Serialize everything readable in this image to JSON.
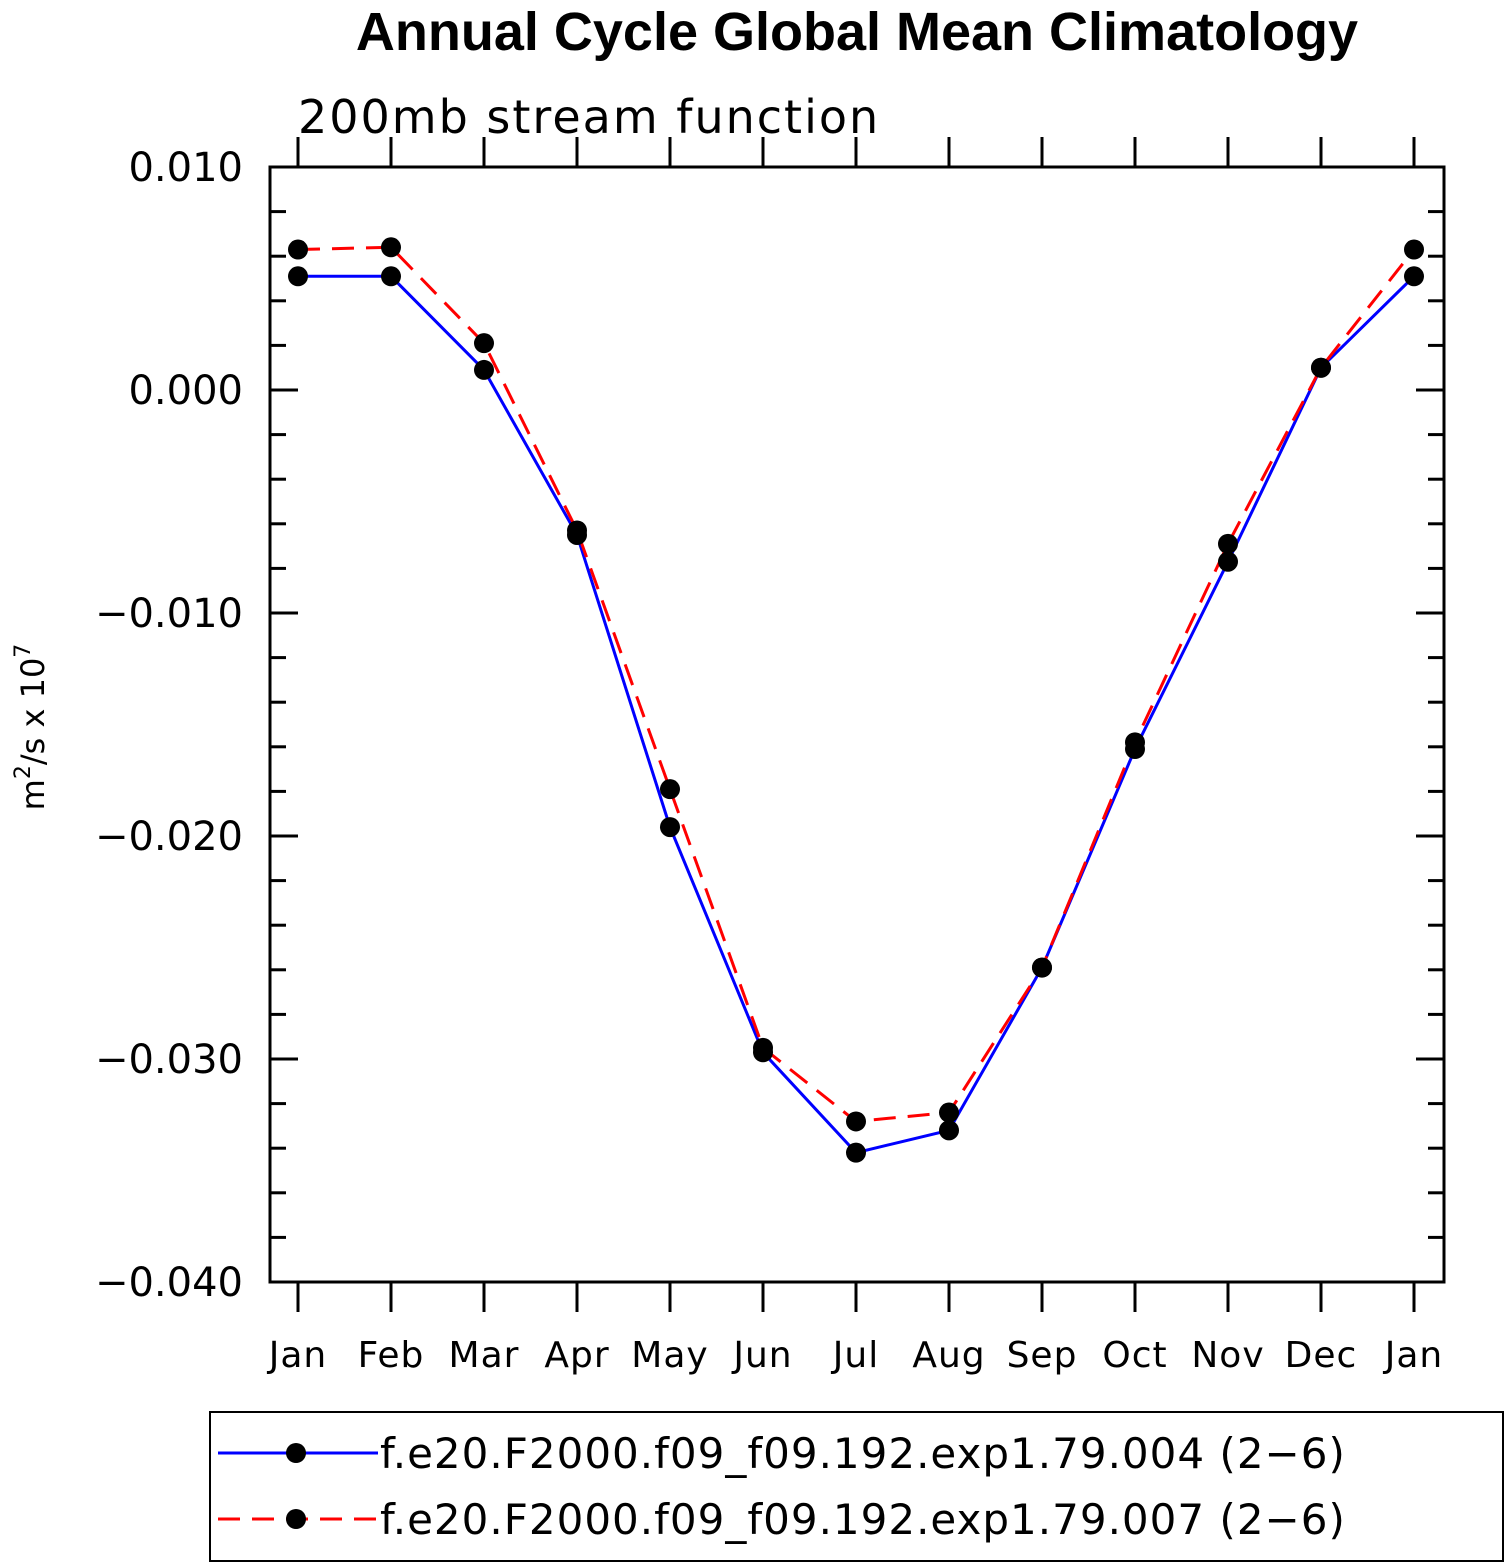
{
  "chart_data": {
    "type": "line",
    "title": "Annual Cycle Global Mean Climatology",
    "subtitle": "200mb stream function",
    "ylabel": "m2/s x 107",
    "ylabel_parts": {
      "base1": "m",
      "sup1": "2",
      "base2": "/s x 10",
      "sup2": "7"
    },
    "categories": [
      "Jan",
      "Feb",
      "Mar",
      "Apr",
      "May",
      "Jun",
      "Jul",
      "Aug",
      "Sep",
      "Oct",
      "Nov",
      "Dec",
      "Jan"
    ],
    "ylim": [
      -0.04,
      0.01
    ],
    "yticks": [
      0.01,
      0.0,
      -0.01,
      -0.02,
      -0.03,
      -0.04
    ],
    "ytick_labels": [
      "0.010",
      "0.000",
      "−0.010",
      "−0.020",
      "−0.030",
      "−0.040"
    ],
    "legend_position": "bottom",
    "grid": false,
    "series": [
      {
        "name": "f.e20.F2000.f09_f09.192.exp1.79.004 (2−6)",
        "color": "#0000ff",
        "dash": "solid",
        "values": [
          0.0051,
          0.0051,
          0.0009,
          -0.0065,
          -0.0196,
          -0.0297,
          -0.0342,
          -0.0332,
          -0.0259,
          -0.0161,
          -0.0077,
          0.001,
          0.0051
        ]
      },
      {
        "name": "f.e20.F2000.f09_f09.192.exp1.79.007 (2−6)",
        "color": "#ff0000",
        "dash": "dashed",
        "values": [
          0.0063,
          0.0064,
          0.0021,
          -0.0063,
          -0.0179,
          -0.0295,
          -0.0328,
          -0.0324,
          -0.0259,
          -0.0158,
          -0.0069,
          0.001,
          0.0063
        ]
      }
    ]
  }
}
